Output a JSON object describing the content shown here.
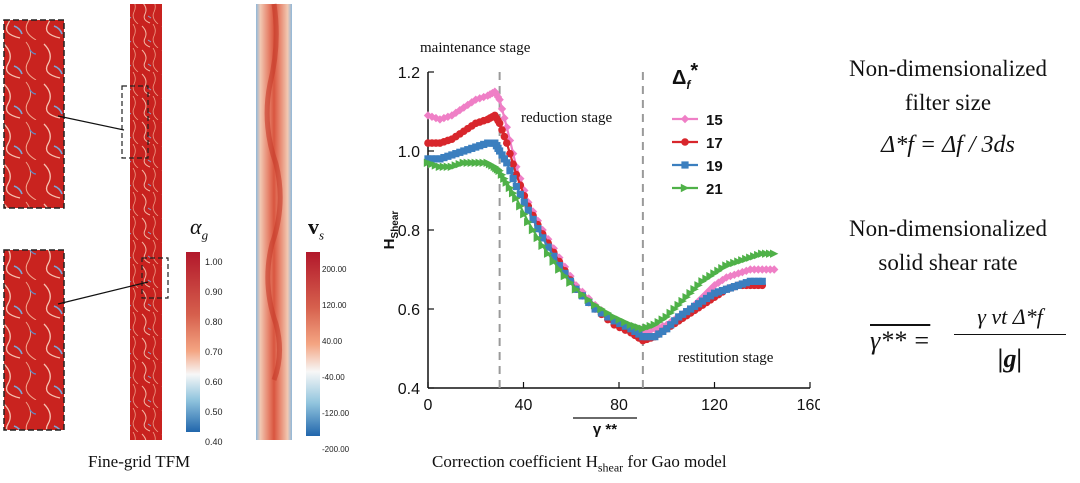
{
  "left_figure": {
    "caption": "Fine-grid TFM",
    "alpha_label": "α",
    "alpha_sub": "g",
    "alpha_ticks": [
      "1.00",
      "0.90",
      "0.80",
      "0.70",
      "0.60",
      "0.50",
      "0.40"
    ],
    "vs_label": "v",
    "vs_sub": "s",
    "vs_ticks": [
      "200.00",
      "120.00",
      "40.00",
      "-40.00",
      "-120.00",
      "-200.00"
    ]
  },
  "chart_data": {
    "type": "line",
    "title": "Correction coefficient H_shear for Gao model",
    "caption": "Correction coefficient H",
    "caption_sub": "shear",
    "caption_tail": " for Gao model",
    "xlabel": "γ **",
    "ylabel": "H",
    "ylabel_sub": "Shear",
    "xlim": [
      0,
      160
    ],
    "ylim": [
      0.4,
      1.2
    ],
    "xticks": [
      "0",
      "40",
      "80",
      "120",
      "160"
    ],
    "yticks": [
      "0.4",
      "0.6",
      "0.8",
      "1.0",
      "1.2"
    ],
    "stage_lines": [
      30,
      90
    ],
    "annotations": [
      "maintenance stage",
      "reduction stage",
      "restitution stage"
    ],
    "legend_title": "Δ",
    "legend_title_sub": "f",
    "legend_title_sup": "*",
    "series": [
      {
        "name": "15",
        "color": "#ef7fc6",
        "marker": "diamond",
        "x": [
          0,
          5,
          10,
          15,
          20,
          25,
          28,
          30,
          33,
          37,
          42,
          48,
          55,
          62,
          70,
          78,
          85,
          90,
          95,
          100,
          105,
          110,
          115,
          120,
          125,
          130,
          135,
          140,
          145
        ],
        "y": [
          1.09,
          1.08,
          1.09,
          1.11,
          1.13,
          1.14,
          1.15,
          1.13,
          1.06,
          0.96,
          0.87,
          0.8,
          0.73,
          0.66,
          0.61,
          0.57,
          0.55,
          0.54,
          0.55,
          0.56,
          0.58,
          0.6,
          0.63,
          0.66,
          0.68,
          0.69,
          0.7,
          0.7,
          0.7
        ]
      },
      {
        "name": "17",
        "color": "#d8262c",
        "marker": "circle",
        "x": [
          0,
          5,
          10,
          15,
          20,
          25,
          28,
          30,
          33,
          37,
          42,
          48,
          55,
          62,
          70,
          78,
          85,
          90,
          95,
          100,
          105,
          110,
          115,
          120,
          125,
          130,
          135,
          140
        ],
        "y": [
          1.02,
          1.02,
          1.03,
          1.05,
          1.07,
          1.08,
          1.09,
          1.07,
          1.02,
          0.94,
          0.86,
          0.79,
          0.72,
          0.65,
          0.6,
          0.56,
          0.54,
          0.52,
          0.53,
          0.55,
          0.57,
          0.59,
          0.61,
          0.63,
          0.65,
          0.66,
          0.66,
          0.66
        ]
      },
      {
        "name": "19",
        "color": "#3b7fbf",
        "marker": "square",
        "x": [
          0,
          5,
          10,
          15,
          20,
          25,
          28,
          30,
          33,
          37,
          42,
          48,
          55,
          62,
          70,
          78,
          85,
          90,
          95,
          100,
          105,
          110,
          115,
          120,
          125,
          130,
          135,
          140
        ],
        "y": [
          0.98,
          0.98,
          0.99,
          1.0,
          1.01,
          1.02,
          1.02,
          1.0,
          0.97,
          0.91,
          0.85,
          0.78,
          0.71,
          0.65,
          0.6,
          0.57,
          0.55,
          0.53,
          0.53,
          0.55,
          0.58,
          0.6,
          0.62,
          0.64,
          0.65,
          0.66,
          0.67,
          0.67
        ]
      },
      {
        "name": "21",
        "color": "#4fb148",
        "marker": "triangle",
        "x": [
          0,
          5,
          10,
          15,
          20,
          25,
          28,
          30,
          33,
          37,
          42,
          48,
          55,
          62,
          70,
          78,
          85,
          90,
          95,
          100,
          105,
          110,
          115,
          120,
          125,
          130,
          135,
          140,
          145
        ],
        "y": [
          0.97,
          0.96,
          0.96,
          0.97,
          0.97,
          0.97,
          0.96,
          0.95,
          0.92,
          0.88,
          0.82,
          0.76,
          0.7,
          0.65,
          0.61,
          0.58,
          0.56,
          0.55,
          0.56,
          0.58,
          0.61,
          0.64,
          0.67,
          0.69,
          0.71,
          0.72,
          0.73,
          0.74,
          0.74
        ]
      }
    ]
  },
  "right_text": {
    "filter_title_1": "Non-dimensionalized",
    "filter_title_2": "filter size",
    "filter_eq": "Δ*f = Δf / 3ds",
    "shear_title_1": "Non-dimensionalized",
    "shear_title_2": "solid shear rate",
    "shear_eq_lhs": "γ** =",
    "shear_eq_num": "γ νt Δ*f",
    "shear_eq_den": "|g|"
  }
}
